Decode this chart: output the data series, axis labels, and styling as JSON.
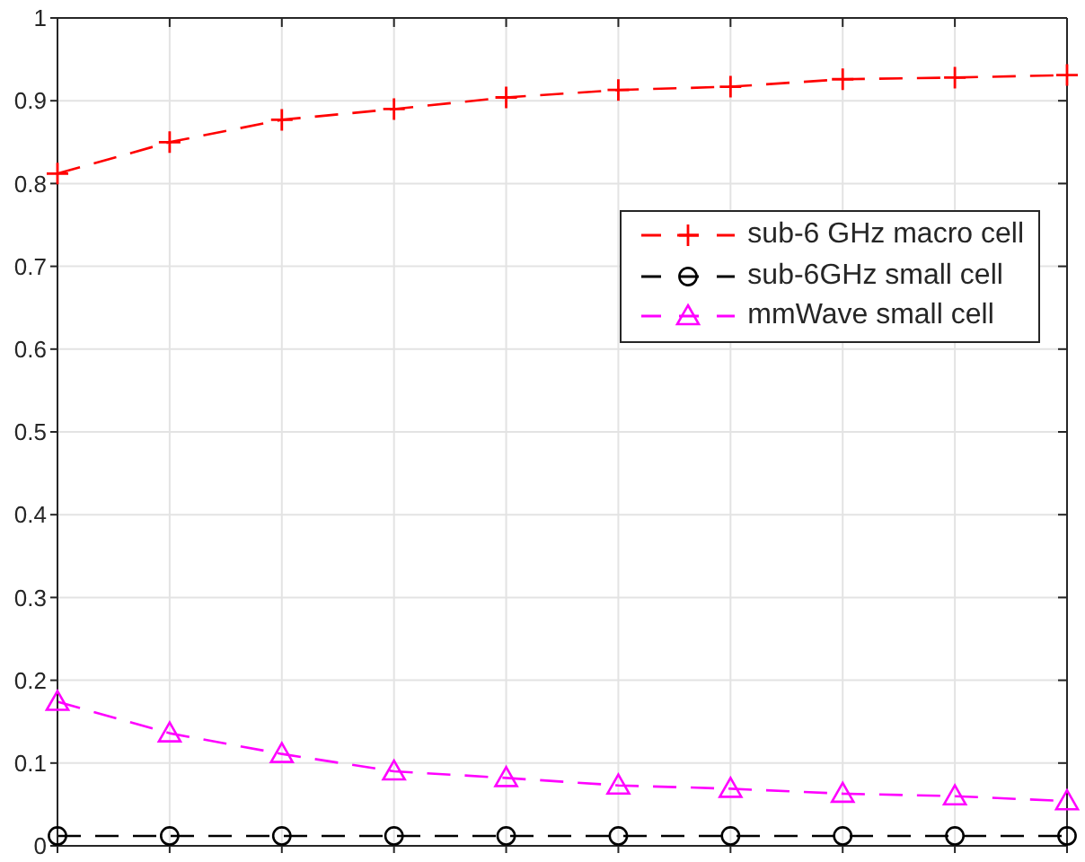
{
  "chart_data": {
    "type": "line",
    "categories": [
      null,
      null,
      null,
      null,
      null,
      null,
      null,
      null,
      null,
      null
    ],
    "series": [
      {
        "name": "sub-6 GHz macro cell",
        "color": "#ff0000",
        "marker": "cross",
        "values": [
          0.812,
          0.85,
          0.877,
          0.89,
          0.904,
          0.913,
          0.917,
          0.926,
          0.928,
          0.931
        ]
      },
      {
        "name": "sub-6GHz small cell",
        "color": "#000000",
        "marker": "circle",
        "values": [
          0.012,
          0.012,
          0.012,
          0.012,
          0.012,
          0.012,
          0.012,
          0.012,
          0.012,
          0.012
        ]
      },
      {
        "name": "mmWave small cell",
        "color": "#ff00ff",
        "marker": "triangle",
        "values": [
          0.174,
          0.136,
          0.111,
          0.09,
          0.082,
          0.073,
          0.069,
          0.063,
          0.06,
          0.054
        ]
      }
    ],
    "ylim": [
      0,
      1
    ],
    "yticks": [
      0,
      0.1,
      0.2,
      0.3,
      0.4,
      0.5,
      0.6,
      0.7,
      0.8,
      0.9,
      1
    ],
    "grid": true,
    "legend": "top right",
    "line_style": "dashed",
    "tick_labels": "y"
  }
}
